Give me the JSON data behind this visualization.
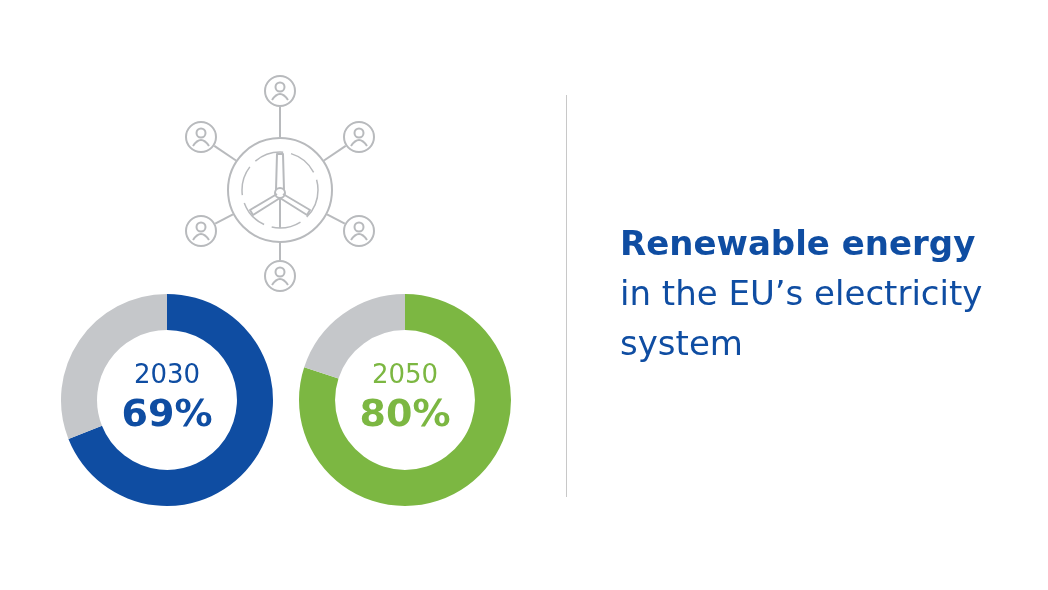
{
  "chart_data": [
    {
      "type": "donut",
      "title": "2030",
      "categories": [
        null,
        null
      ],
      "values": [
        69,
        31
      ],
      "colors": [
        "#0f4da2",
        "#c5c7ca"
      ],
      "value_labels": [
        "69%",
        null
      ]
    },
    {
      "type": "donut",
      "title": "2050",
      "categories": [
        null,
        null
      ],
      "values": [
        80,
        20
      ],
      "colors": [
        "#7cb742",
        "#c5c7ca"
      ],
      "value_labels": [
        "80%",
        null
      ]
    },
    {
      "type": "other",
      "title": "Renewable energy",
      "subtitle": "in the EU’s electricity system"
    }
  ]
}
